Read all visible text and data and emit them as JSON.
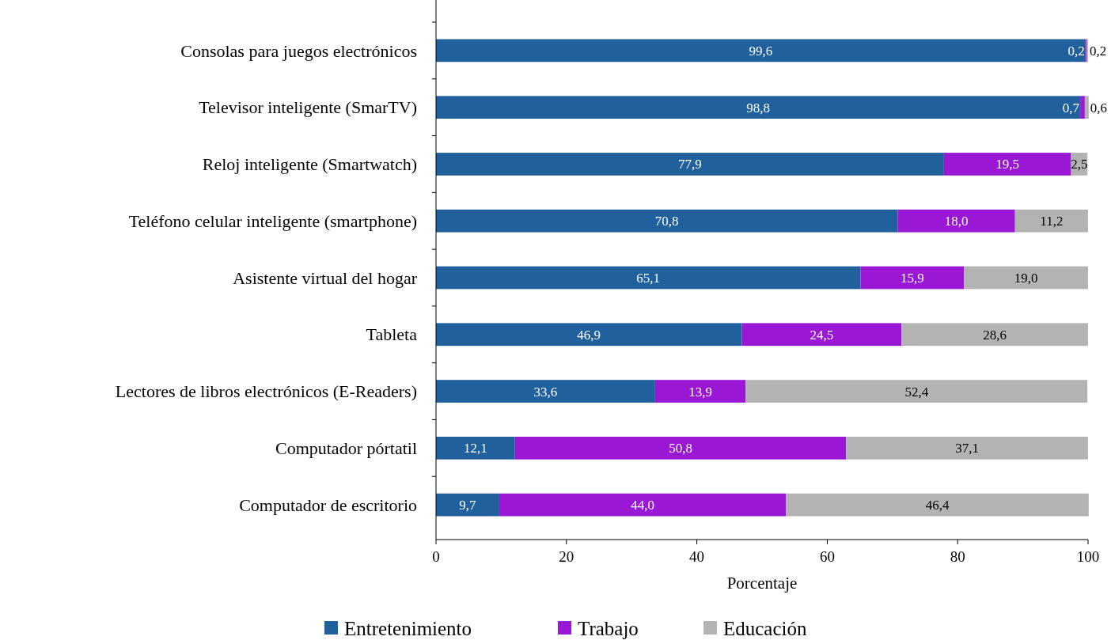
{
  "chart_data": {
    "type": "bar",
    "orientation": "horizontal",
    "stacked": true,
    "categories": [
      "Consolas para juegos electrónicos",
      "Televisor inteligente (SmarTV)",
      "Reloj inteligente (Smartwatch)",
      "Teléfono celular inteligente (smartphone)",
      "Asistente virtual del hogar",
      "Tableta",
      "Lectores de libros electrónicos (E-Readers)",
      "Computador pórtatil",
      "Computador de escritorio"
    ],
    "series": [
      {
        "name": "Entretenimiento",
        "color": "#20609c",
        "values": [
          99.6,
          98.8,
          77.9,
          70.8,
          65.1,
          46.9,
          33.6,
          12.1,
          9.7
        ],
        "value_labels": [
          "99,6",
          "98,8",
          "77,9",
          "70,8",
          "65,1",
          "46,9",
          "33,6",
          "12,1",
          "9,7"
        ]
      },
      {
        "name": "Trabajo",
        "color": "#9a17d6",
        "values": [
          0.2,
          0.7,
          19.5,
          18.0,
          15.9,
          24.5,
          13.9,
          50.8,
          44.0
        ],
        "value_labels": [
          "0,2",
          "0,7",
          "19,5",
          "18,0",
          "15,9",
          "24,5",
          "13,9",
          "50,8",
          "44,0"
        ]
      },
      {
        "name": "Educación",
        "color": "#b3b3b3",
        "values": [
          0.2,
          0.6,
          2.5,
          11.2,
          19.0,
          28.6,
          52.4,
          37.1,
          46.4
        ],
        "value_labels": [
          "0,2",
          "0,6",
          "2,5",
          "11,2",
          "19,0",
          "28,6",
          "52,4",
          "37,1",
          "46,4"
        ]
      }
    ],
    "xlim": [
      0,
      100
    ],
    "xticks": [
      0,
      20,
      40,
      60,
      80,
      100
    ],
    "xlabel": "Porcentaje",
    "legend": "bottom",
    "grid": false
  }
}
